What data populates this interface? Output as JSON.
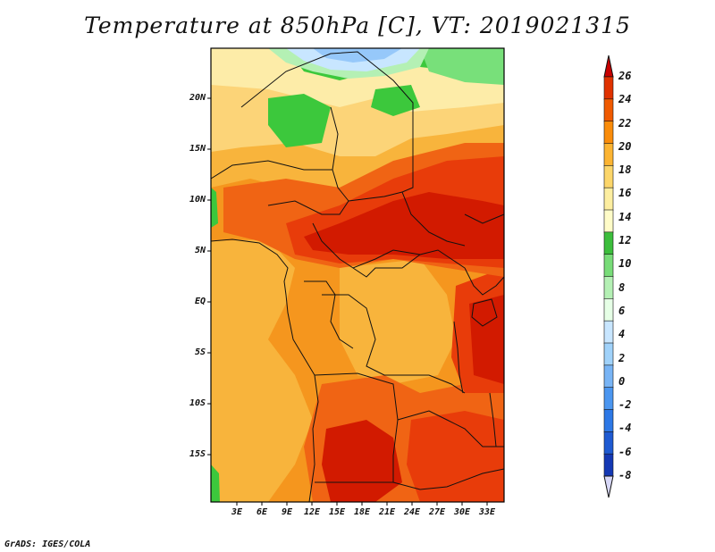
{
  "title": "Temperature at 850hPa [C], VT: 2019021315",
  "credit": "GrADS: IGES/COLA",
  "lat_ticks": [
    "20N",
    "15N",
    "10N",
    "5N",
    "EQ",
    "5S",
    "10S",
    "15S"
  ],
  "lon_ticks": [
    "3E",
    "6E",
    "9E",
    "12E",
    "15E",
    "18E",
    "21E",
    "24E",
    "27E",
    "30E",
    "33E"
  ],
  "colorbar": {
    "labels": [
      "26",
      "24",
      "22",
      "20",
      "18",
      "16",
      "14",
      "12",
      "10",
      "8",
      "6",
      "4",
      "2",
      "0",
      "-2",
      "-4",
      "-6",
      "-8"
    ],
    "colors": [
      "#c80000",
      "#e03200",
      "#f05a00",
      "#fa8c0a",
      "#fcb432",
      "#fcd66a",
      "#fdeea0",
      "#fffcc8",
      "#3cbe3c",
      "#78dc78",
      "#b4f0b4",
      "#e6ffe6",
      "#c8e6ff",
      "#a0d2fa",
      "#78b4f5",
      "#4b96f0",
      "#2d78e6",
      "#1e5ad2",
      "#1438b4",
      "#0a1478"
    ]
  },
  "field_colors": {
    "c26": "#d21a00",
    "c24": "#e83c0a",
    "c22": "#f06414",
    "c20": "#f5961e",
    "c18": "#f8b43c",
    "c16": "#fcd478",
    "c14": "#fdeca8",
    "g12": "#3cc83c",
    "g10": "#78e07a",
    "g8": "#b4f0b4",
    "b6": "#c8e6ff",
    "b4": "#96c8fa"
  }
}
